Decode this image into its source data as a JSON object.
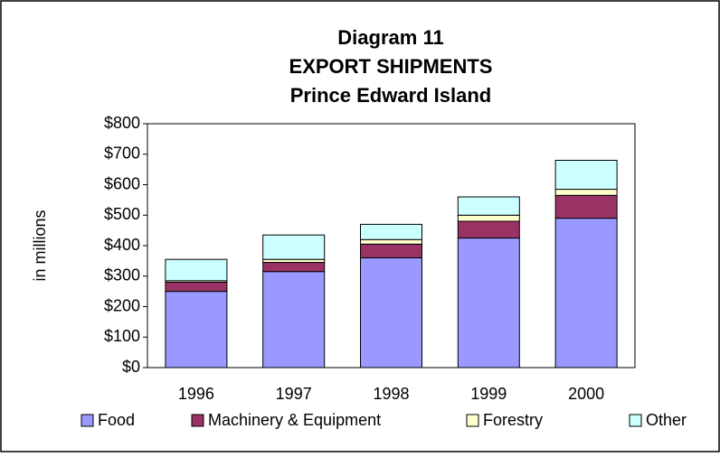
{
  "chart_data": {
    "type": "stacked_bar",
    "title": [
      "Diagram 11",
      "EXPORT SHIPMENTS",
      "Prince Edward Island"
    ],
    "y_label": "in millions",
    "categories": [
      "1996",
      "1997",
      "1998",
      "1999",
      "2000"
    ],
    "series": [
      {
        "name": "Food",
        "color": "#9999ff",
        "values": [
          250,
          315,
          360,
          425,
          490
        ]
      },
      {
        "name": "Machinery & Equipment",
        "color": "#993366",
        "values": [
          30,
          30,
          45,
          55,
          75
        ]
      },
      {
        "name": "Forestry",
        "color": "#ffffcc",
        "values": [
          5,
          10,
          15,
          20,
          20
        ]
      },
      {
        "name": "Other",
        "color": "#ccffff",
        "values": [
          70,
          80,
          50,
          60,
          95
        ]
      }
    ],
    "ylim": [
      0,
      800
    ],
    "yticks": [
      {
        "value": 0,
        "label": "$0"
      },
      {
        "value": 100,
        "label": "$100"
      },
      {
        "value": 200,
        "label": "$200"
      },
      {
        "value": 300,
        "label": "$300"
      },
      {
        "value": 400,
        "label": "$400"
      },
      {
        "value": 500,
        "label": "$500"
      },
      {
        "value": 600,
        "label": "$600"
      },
      {
        "value": 700,
        "label": "$700"
      },
      {
        "value": 800,
        "label": "$800"
      }
    ],
    "legend": "bottom"
  }
}
